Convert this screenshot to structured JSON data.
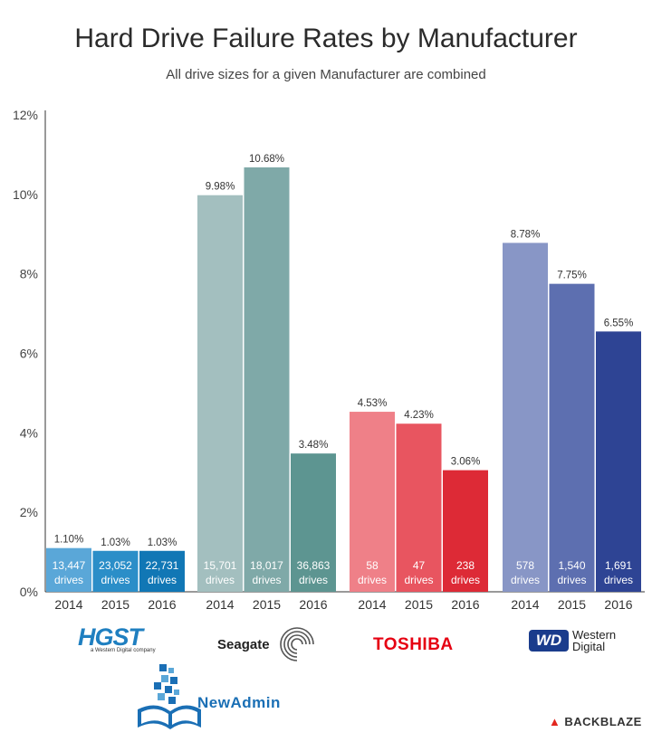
{
  "chart_data": {
    "type": "bar",
    "title": "Hard Drive Failure Rates by Manufacturer",
    "subtitle": "All drive sizes for a given Manufacturer are combined",
    "ylim": [
      0,
      12
    ],
    "y_ticks": [
      "0%",
      "2%",
      "4%",
      "6%",
      "8%",
      "10%",
      "12%"
    ],
    "y_tick_values": [
      0,
      2,
      4,
      6,
      8,
      10,
      12
    ],
    "grid": false,
    "groups": [
      {
        "manufacturer": "HGST",
        "bars": [
          {
            "year": "2014",
            "value": 1.1,
            "label": "1.10%",
            "drives": "13,447",
            "color": "#5aa7d8"
          },
          {
            "year": "2015",
            "value": 1.03,
            "label": "1.03%",
            "drives": "23,052",
            "color": "#2b8ec8"
          },
          {
            "year": "2016",
            "value": 1.03,
            "label": "1.03%",
            "drives": "22,731",
            "color": "#1177b5"
          }
        ]
      },
      {
        "manufacturer": "Seagate",
        "bars": [
          {
            "year": "2014",
            "value": 9.98,
            "label": "9.98%",
            "drives": "15,701",
            "color": "#a3bfbf"
          },
          {
            "year": "2015",
            "value": 10.68,
            "label": "10.68%",
            "drives": "18,017",
            "color": "#7fa9a8"
          },
          {
            "year": "2016",
            "value": 3.48,
            "label": "3.48%",
            "drives": "36,863",
            "color": "#5d9591"
          }
        ]
      },
      {
        "manufacturer": "Toshiba",
        "bars": [
          {
            "year": "2014",
            "value": 4.53,
            "label": "4.53%",
            "drives": "58",
            "color": "#ef8088"
          },
          {
            "year": "2015",
            "value": 4.23,
            "label": "4.23%",
            "drives": "47",
            "color": "#e85560"
          },
          {
            "year": "2016",
            "value": 3.06,
            "label": "3.06%",
            "drives": "238",
            "color": "#dd2a36"
          }
        ]
      },
      {
        "manufacturer": "Western Digital",
        "bars": [
          {
            "year": "2014",
            "value": 8.78,
            "label": "8.78%",
            "drives": "578",
            "color": "#8896c6"
          },
          {
            "year": "2015",
            "value": 7.75,
            "label": "7.75%",
            "drives": "1,540",
            "color": "#5d6fb0"
          },
          {
            "year": "2016",
            "value": 6.55,
            "label": "6.55%",
            "drives": "1,691",
            "color": "#2e4494"
          }
        ]
      }
    ],
    "drives_word": "drives"
  },
  "logos": {
    "hgst": "HGST",
    "hgst_tagline": "a Western Digital company",
    "seagate": "Seagate",
    "toshiba": "TOSHIBA",
    "wd_badge": "WD",
    "wd_line1": "Western",
    "wd_line2": "Digital",
    "newadmin": "NewAdmin",
    "backblaze": "BACKBLAZE"
  }
}
